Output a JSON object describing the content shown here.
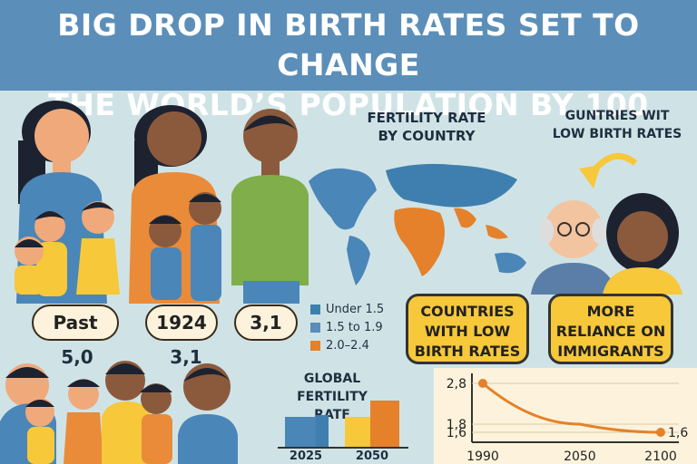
{
  "title": {
    "line1": "BIG DROP IN BIRTH RATES SET TO CHANGE",
    "line2": "THE WORLD’S POPULATION BY 100"
  },
  "families": {
    "pill_past": "Past",
    "pill_1924": "1924",
    "pill_31": "3,1",
    "value_a": "5,0",
    "value_b": "3,1"
  },
  "map": {
    "title_line1": "FERTILITY RATE",
    "title_line2": "BY COUNTRY",
    "legend": [
      {
        "label": "Under 1.5",
        "color": "#3f7fb0"
      },
      {
        "label": "1.5 to 1.9",
        "color": "#5a8db8"
      },
      {
        "label": "2.0–2.4",
        "color": "#e4812a"
      }
    ]
  },
  "right": {
    "heading_line1": "GUNTRIES WIT",
    "heading_line2": "LOW BIRTH RATES",
    "box1": [
      "COUNTRIES",
      "WITH LOW",
      "BIRTH RATES"
    ],
    "box2": [
      "MORE",
      "RELIANCE ON",
      "IMMIGRANTS"
    ]
  },
  "global": {
    "title_line1": "GLOBAL FERTILITY",
    "title_line2": "RATE",
    "years": [
      "2025",
      "2050"
    ]
  },
  "chart_data": {
    "type": "line",
    "x": [
      1990,
      2050,
      2100
    ],
    "values": [
      2.8,
      1.8,
      1.6
    ],
    "x_tick_labels": [
      "1990",
      "2050",
      "2100"
    ],
    "y_tick_labels": [
      "2,8",
      "1,8",
      "1,6"
    ],
    "end_label": "1,6",
    "ylim": [
      1.4,
      3.0
    ],
    "color": "#e4812a"
  }
}
